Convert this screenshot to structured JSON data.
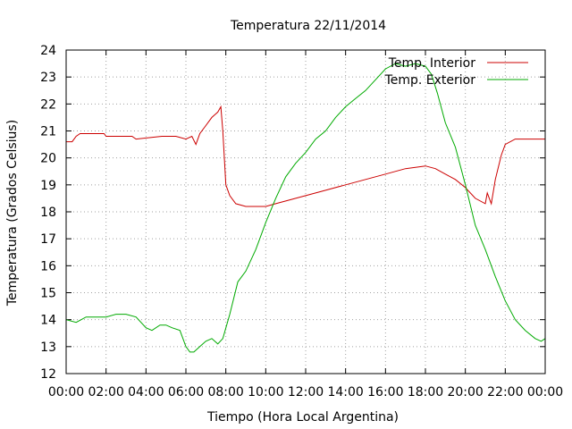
{
  "chart_data": {
    "type": "line",
    "title": "Temperatura 22/11/2014",
    "xlabel": "Tiempo (Hora Local Argentina)",
    "ylabel": "Temperatura (Grados Celsius)",
    "xlim": [
      0,
      24
    ],
    "ylim": [
      12,
      24
    ],
    "xticks": [
      {
        "value": 0,
        "label": "00:00"
      },
      {
        "value": 2,
        "label": "02:00"
      },
      {
        "value": 4,
        "label": "04:00"
      },
      {
        "value": 6,
        "label": "06:00"
      },
      {
        "value": 8,
        "label": "08:00"
      },
      {
        "value": 10,
        "label": "10:00"
      },
      {
        "value": 12,
        "label": "12:00"
      },
      {
        "value": 14,
        "label": "14:00"
      },
      {
        "value": 16,
        "label": "16:00"
      },
      {
        "value": 18,
        "label": "18:00"
      },
      {
        "value": 20,
        "label": "20:00"
      },
      {
        "value": 22,
        "label": "22:00"
      },
      {
        "value": 24,
        "label": "00:00"
      }
    ],
    "yticks": [
      12,
      13,
      14,
      15,
      16,
      17,
      18,
      19,
      20,
      21,
      22,
      23,
      24
    ],
    "grid": true,
    "legend_position": "top-right",
    "series": [
      {
        "name": "Temp. Interior",
        "color": "#cc0000",
        "x": [
          0.0,
          0.3,
          0.5,
          0.7,
          1.0,
          1.9,
          2.0,
          3.3,
          3.5,
          4.8,
          5.5,
          6.0,
          6.3,
          6.5,
          6.7,
          7.0,
          7.3,
          7.6,
          7.75,
          7.85,
          8.0,
          8.2,
          8.5,
          9.0,
          9.5,
          10.0,
          10.5,
          11.0,
          11.5,
          12.0,
          13.0,
          14.0,
          15.0,
          16.0,
          17.0,
          18.0,
          18.5,
          19.0,
          19.5,
          20.0,
          20.5,
          21.0,
          21.1,
          21.3,
          21.5,
          21.8,
          22.0,
          22.5,
          23.0,
          23.5,
          24.0
        ],
        "y": [
          20.6,
          20.6,
          20.8,
          20.9,
          20.9,
          20.9,
          20.8,
          20.8,
          20.7,
          20.8,
          20.8,
          20.7,
          20.8,
          20.5,
          20.9,
          21.2,
          21.5,
          21.7,
          21.9,
          21.0,
          19.0,
          18.6,
          18.3,
          18.2,
          18.2,
          18.2,
          18.3,
          18.4,
          18.5,
          18.6,
          18.8,
          19.0,
          19.2,
          19.4,
          19.6,
          19.7,
          19.6,
          19.4,
          19.2,
          18.9,
          18.5,
          18.3,
          18.7,
          18.3,
          19.2,
          20.1,
          20.5,
          20.7,
          20.7,
          20.7,
          20.7
        ]
      },
      {
        "name": "Temp. Exterior",
        "color": "#00aa00",
        "x": [
          0.0,
          0.5,
          1.0,
          2.0,
          2.5,
          3.0,
          3.5,
          4.0,
          4.3,
          4.7,
          5.0,
          5.3,
          5.7,
          6.0,
          6.2,
          6.4,
          6.7,
          7.0,
          7.3,
          7.6,
          7.85,
          8.2,
          8.6,
          9.0,
          9.5,
          10.0,
          10.5,
          11.0,
          11.5,
          12.0,
          12.5,
          13.0,
          13.5,
          14.0,
          14.5,
          15.0,
          15.5,
          16.0,
          16.5,
          17.0,
          17.5,
          18.0,
          18.3,
          18.6,
          19.0,
          19.5,
          20.0,
          20.5,
          21.0,
          21.5,
          22.0,
          22.5,
          23.0,
          23.5,
          23.8,
          24.0
        ],
        "y": [
          14.0,
          13.9,
          14.1,
          14.1,
          14.2,
          14.2,
          14.1,
          13.7,
          13.6,
          13.8,
          13.8,
          13.7,
          13.6,
          13.0,
          12.8,
          12.8,
          13.0,
          13.2,
          13.3,
          13.1,
          13.3,
          14.2,
          15.4,
          15.8,
          16.6,
          17.6,
          18.5,
          19.3,
          19.8,
          20.2,
          20.7,
          21.0,
          21.5,
          21.9,
          22.2,
          22.5,
          22.9,
          23.3,
          23.5,
          23.4,
          23.5,
          23.4,
          23.1,
          22.4,
          21.3,
          20.4,
          19.0,
          17.5,
          16.6,
          15.6,
          14.7,
          14.0,
          13.6,
          13.3,
          13.2,
          13.3
        ]
      }
    ]
  }
}
